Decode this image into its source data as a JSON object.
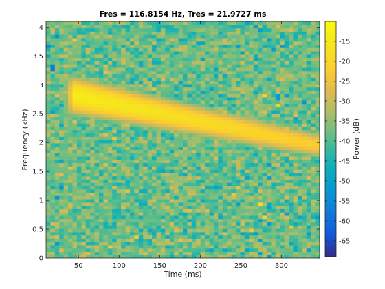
{
  "chart_data": {
    "type": "heatmap",
    "title": "Fres = 116.8154 Hz, Tres = 21.9727 ms",
    "xlabel": "Time (ms)",
    "ylabel": "Frequency (kHz)",
    "xlim": [
      10,
      347
    ],
    "ylim": [
      0,
      4.1
    ],
    "xticks": [
      50,
      100,
      150,
      200,
      250,
      300
    ],
    "yticks": [
      0,
      0.5,
      1,
      1.5,
      2,
      2.5,
      3,
      3.5,
      4
    ],
    "colorbar": {
      "label": "Power (dB)",
      "clim": [
        -69,
        -10
      ],
      "ticks": [
        -15,
        -20,
        -25,
        -30,
        -35,
        -40,
        -45,
        -50,
        -55,
        -60,
        -65
      ],
      "colormap": "parula"
    },
    "grid": false,
    "background_level_db": -38,
    "sweep_ridge": {
      "start": {
        "time_ms": 45,
        "freq_khz": 2.82
      },
      "end": {
        "time_ms": 340,
        "freq_khz": 1.97
      },
      "peak_level_db": -14,
      "end_level_db": -22
    }
  }
}
